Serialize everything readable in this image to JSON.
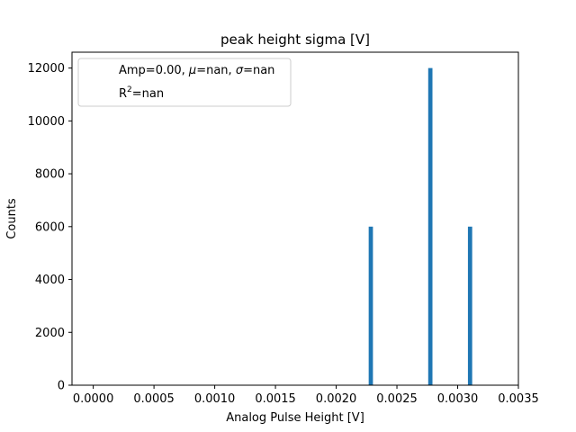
{
  "chart_data": {
    "type": "bar",
    "title": "peak height sigma [V]",
    "xlabel": "Analog Pulse Height [V]",
    "ylabel": "Counts",
    "xlim": [
      -0.000175,
      0.0035
    ],
    "ylim": [
      0,
      12600
    ],
    "xticks": [
      0.0,
      0.0005,
      0.001,
      0.0015,
      0.002,
      0.0025,
      0.003,
      0.0035
    ],
    "xtick_labels": [
      "0.0000",
      "0.0005",
      "0.0010",
      "0.0015",
      "0.0020",
      "0.0025",
      "0.0030",
      "0.0035"
    ],
    "yticks": [
      0,
      2000,
      4000,
      6000,
      8000,
      10000,
      12000
    ],
    "ytick_labels": [
      "0",
      "2000",
      "4000",
      "6000",
      "8000",
      "10000",
      "12000"
    ],
    "bin_width": 3.5e-05,
    "bars": [
      {
        "x": 0.002285,
        "value": 6000
      },
      {
        "x": 0.002775,
        "value": 12000
      },
      {
        "x": 0.003102,
        "value": 6000
      }
    ],
    "bar_color": "#1f77b4",
    "grid": false,
    "legend": {
      "placement": "upper-left",
      "line1": {
        "prefix": "Amp=0.00, ",
        "mu": "μ",
        "mu_value": "=nan, ",
        "sigma": "σ",
        "sigma_value": "=nan"
      },
      "line2": {
        "base": "R",
        "sup": "2",
        "rest": "=nan"
      }
    }
  }
}
